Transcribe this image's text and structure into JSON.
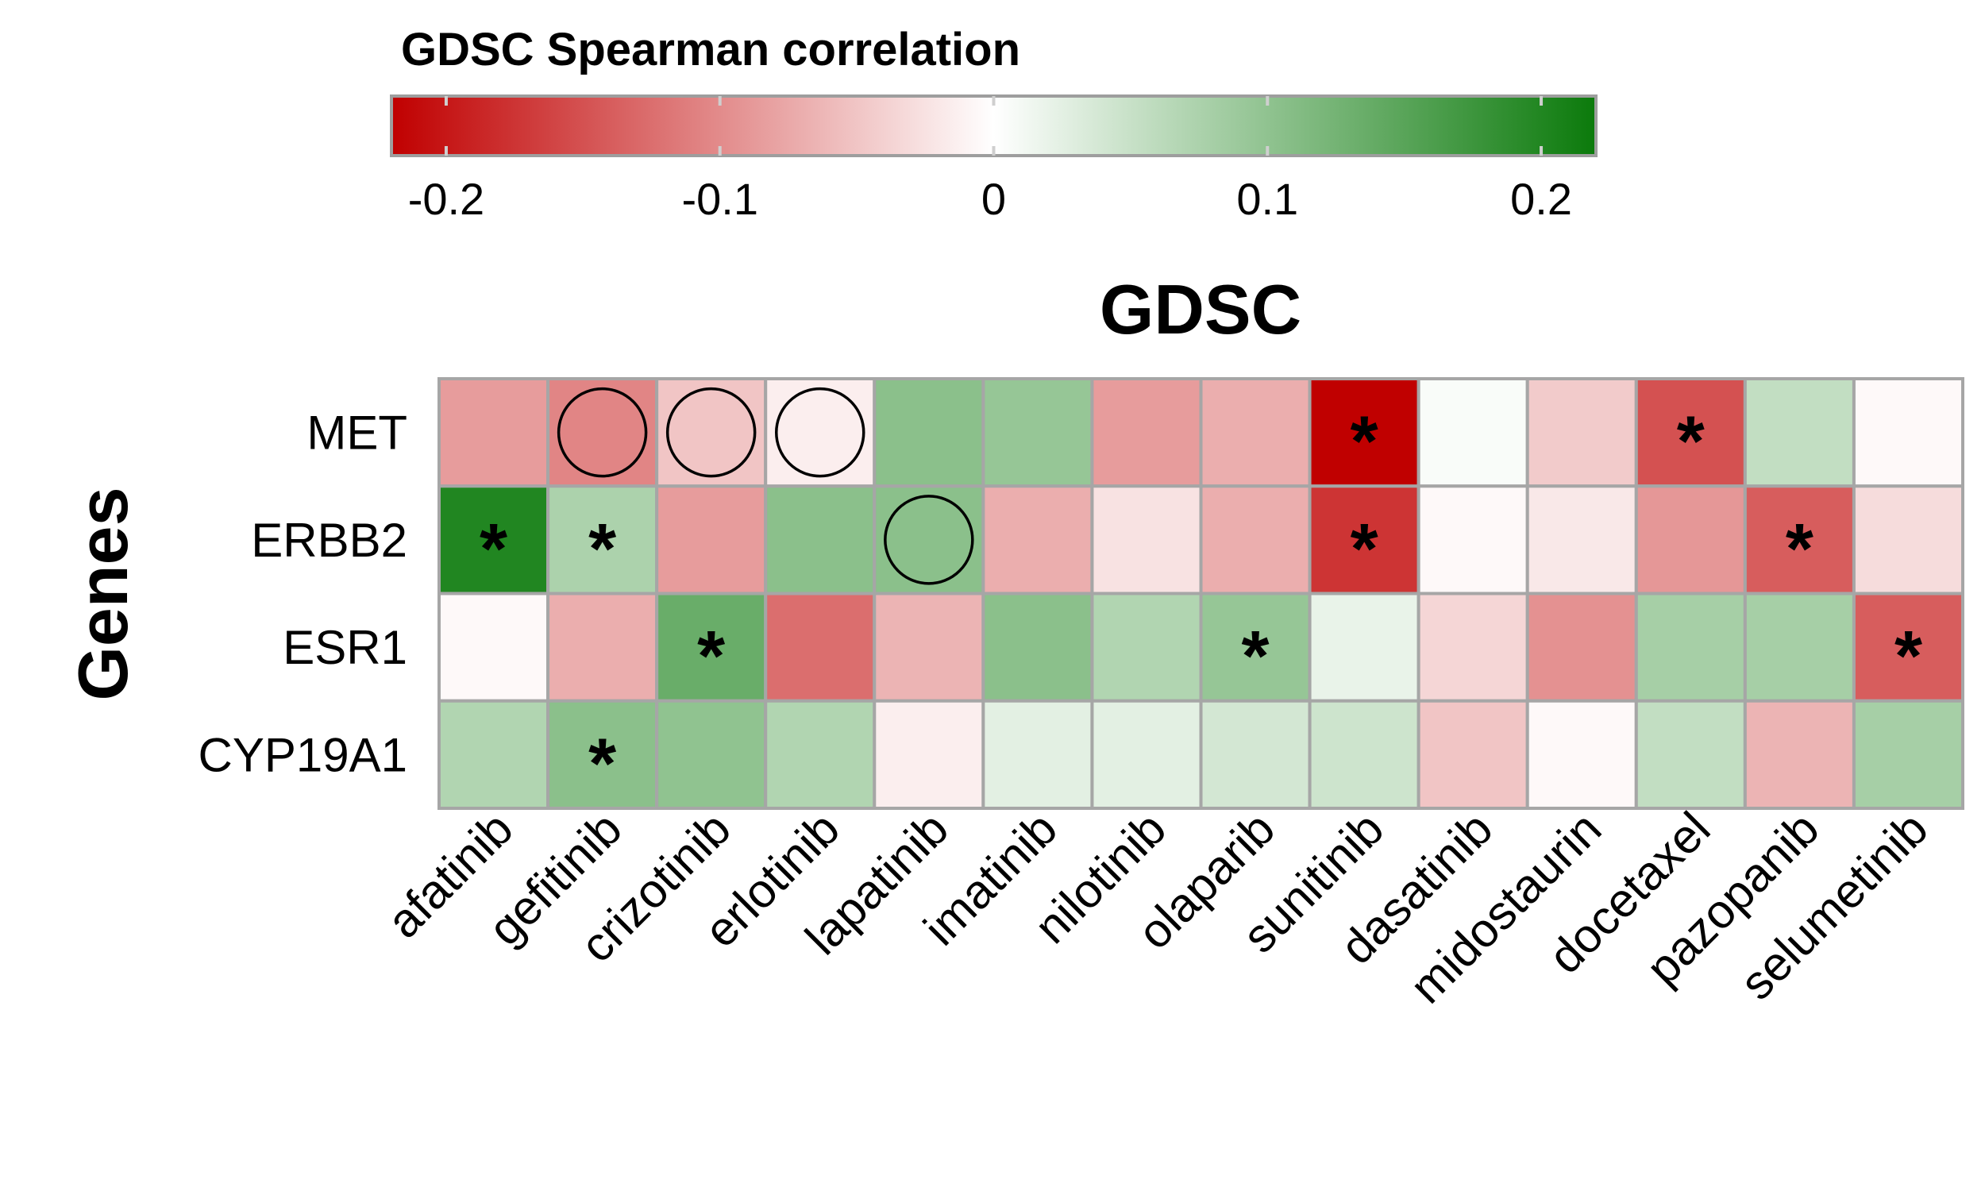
{
  "chart_data": {
    "type": "heatmap",
    "title": "GDSC",
    "legend": {
      "title": "GDSC Spearman correlation",
      "ticks": [
        -0.2,
        -0.1,
        0,
        0.1,
        0.2
      ],
      "tick_labels": [
        "-0.2",
        "-0.1",
        "0",
        "0.1",
        "0.2"
      ],
      "range": [
        -0.22,
        0.22
      ],
      "colors": {
        "low": "#c00000",
        "mid": "#ffffff",
        "high": "#0b7a0b"
      },
      "placement": "top"
    },
    "ylabel": "Genes",
    "xlabel": "",
    "rows": [
      "MET",
      "ERBB2",
      "ESR1",
      "CYP19A1"
    ],
    "columns": [
      "afatinib",
      "gefitinib",
      "crizotinib",
      "erlotinib",
      "lapatinib",
      "imatinib",
      "nilotinib",
      "olaparib",
      "sunitinib",
      "dasatinib",
      "midostaurin",
      "docetaxel",
      "pazopanib",
      "selumetinib"
    ],
    "values": [
      [
        -0.085,
        -0.105,
        -0.05,
        -0.015,
        0.105,
        0.095,
        -0.085,
        -0.07,
        -0.22,
        0.005,
        -0.045,
        -0.15,
        0.055,
        -0.005
      ],
      [
        0.2,
        0.075,
        -0.085,
        0.105,
        0.105,
        -0.07,
        -0.025,
        -0.07,
        -0.175,
        -0.005,
        -0.02,
        -0.09,
        -0.14,
        -0.03
      ],
      [
        -0.005,
        -0.07,
        0.135,
        -0.125,
        -0.065,
        0.105,
        0.07,
        0.095,
        0.02,
        -0.035,
        -0.095,
        0.08,
        0.08,
        -0.14
      ],
      [
        0.07,
        0.105,
        0.1,
        0.07,
        -0.015,
        0.025,
        0.025,
        0.04,
        0.045,
        -0.05,
        -0.005,
        0.055,
        -0.065,
        0.08
      ]
    ],
    "significant": [
      [
        0,
        0,
        0,
        0,
        0,
        0,
        0,
        0,
        1,
        0,
        0,
        1,
        0,
        0
      ],
      [
        1,
        1,
        0,
        0,
        0,
        0,
        0,
        0,
        1,
        0,
        0,
        0,
        1,
        0
      ],
      [
        0,
        0,
        1,
        0,
        0,
        0,
        0,
        1,
        0,
        0,
        0,
        0,
        0,
        1
      ],
      [
        0,
        1,
        0,
        0,
        0,
        0,
        0,
        0,
        0,
        0,
        0,
        0,
        0,
        0
      ]
    ],
    "circled": [
      [
        0,
        1,
        1,
        1,
        0,
        0,
        0,
        0,
        0,
        0,
        0,
        0,
        0,
        0
      ],
      [
        0,
        0,
        0,
        0,
        1,
        0,
        0,
        0,
        0,
        0,
        0,
        0,
        0,
        0
      ],
      [
        0,
        0,
        0,
        0,
        0,
        0,
        0,
        0,
        0,
        0,
        0,
        0,
        0,
        0
      ],
      [
        0,
        0,
        0,
        0,
        0,
        0,
        0,
        0,
        0,
        0,
        0,
        0,
        0,
        0
      ]
    ],
    "significance_marker": "*",
    "grid": true
  }
}
